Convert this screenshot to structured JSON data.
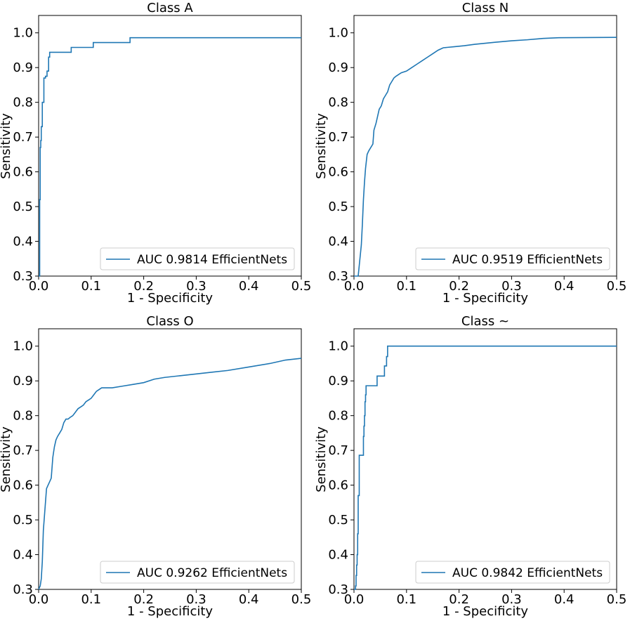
{
  "figure": {
    "line_color": "#1f77b4"
  },
  "chart_data": [
    {
      "type": "line",
      "title": "Class A",
      "xlabel": "1 - Specificity",
      "ylabel": "Sensitivity",
      "xlim": [
        0,
        0.5
      ],
      "ylim": [
        0.3,
        1.05
      ],
      "xticks": [
        0.0,
        0.1,
        0.2,
        0.3,
        0.4,
        0.5
      ],
      "xtick_labels": [
        "0.0",
        "0.1",
        "0.2",
        "0.3",
        "0.4",
        "0.5"
      ],
      "yticks": [
        0.3,
        0.4,
        0.5,
        0.6,
        0.7,
        0.8,
        0.9,
        1.0
      ],
      "ytick_labels": [
        "0.3",
        "0.4",
        "0.5",
        "0.6",
        "0.7",
        "0.8",
        "0.9",
        "1.0"
      ],
      "legend": "AUC 0.9814 EfficientNets",
      "legend_position": "lower right",
      "series": [
        {
          "name": "AUC 0.9814 EfficientNets",
          "x": [
            0.0,
            0.002,
            0.002,
            0.003,
            0.003,
            0.004,
            0.004,
            0.005,
            0.005,
            0.007,
            0.007,
            0.01,
            0.01,
            0.013,
            0.013,
            0.016,
            0.016,
            0.019,
            0.019,
            0.021,
            0.021,
            0.062,
            0.062,
            0.104,
            0.104,
            0.174,
            0.174,
            0.5
          ],
          "y": [
            0.3,
            0.3,
            0.52,
            0.52,
            0.67,
            0.67,
            0.69,
            0.69,
            0.73,
            0.73,
            0.8,
            0.8,
            0.87,
            0.87,
            0.875,
            0.875,
            0.89,
            0.89,
            0.93,
            0.93,
            0.944,
            0.944,
            0.958,
            0.958,
            0.972,
            0.972,
            0.986,
            0.986
          ]
        }
      ]
    },
    {
      "type": "line",
      "title": "Class N",
      "xlabel": "1 - Specificity",
      "ylabel": "Sensitivity",
      "xlim": [
        0,
        0.5
      ],
      "ylim": [
        0.3,
        1.05
      ],
      "xticks": [
        0.0,
        0.1,
        0.2,
        0.3,
        0.4,
        0.5
      ],
      "xtick_labels": [
        "0.0",
        "0.1",
        "0.2",
        "0.3",
        "0.4",
        "0.5"
      ],
      "yticks": [
        0.3,
        0.4,
        0.5,
        0.6,
        0.7,
        0.8,
        0.9,
        1.0
      ],
      "ytick_labels": [
        "0.3",
        "0.4",
        "0.5",
        "0.6",
        "0.7",
        "0.8",
        "0.9",
        "1.0"
      ],
      "legend": "AUC 0.9519 EfficientNets",
      "legend_position": "lower right",
      "series": [
        {
          "name": "AUC 0.9519 EfficientNets",
          "x": [
            0.0,
            0.008,
            0.012,
            0.014,
            0.016,
            0.018,
            0.02,
            0.022,
            0.025,
            0.028,
            0.032,
            0.036,
            0.038,
            0.042,
            0.045,
            0.048,
            0.052,
            0.056,
            0.06,
            0.064,
            0.068,
            0.072,
            0.076,
            0.08,
            0.085,
            0.09,
            0.1,
            0.11,
            0.12,
            0.13,
            0.14,
            0.15,
            0.16,
            0.17,
            0.19,
            0.21,
            0.23,
            0.25,
            0.27,
            0.3,
            0.33,
            0.36,
            0.39,
            0.5
          ],
          "y": [
            0.3,
            0.3,
            0.36,
            0.39,
            0.45,
            0.52,
            0.57,
            0.61,
            0.65,
            0.66,
            0.67,
            0.68,
            0.72,
            0.74,
            0.76,
            0.78,
            0.79,
            0.81,
            0.82,
            0.83,
            0.85,
            0.86,
            0.87,
            0.875,
            0.88,
            0.885,
            0.89,
            0.9,
            0.91,
            0.92,
            0.93,
            0.94,
            0.95,
            0.957,
            0.96,
            0.963,
            0.967,
            0.97,
            0.973,
            0.977,
            0.98,
            0.984,
            0.986,
            0.987
          ]
        }
      ]
    },
    {
      "type": "line",
      "title": "Class O",
      "xlabel": "1 - Specificity",
      "ylabel": "Sensitivity",
      "xlim": [
        0,
        0.5
      ],
      "ylim": [
        0.3,
        1.05
      ],
      "xticks": [
        0.0,
        0.1,
        0.2,
        0.3,
        0.4,
        0.5
      ],
      "xtick_labels": [
        "0.0",
        "0.1",
        "0.2",
        "0.3",
        "0.4",
        "0.5"
      ],
      "yticks": [
        0.3,
        0.4,
        0.5,
        0.6,
        0.7,
        0.8,
        0.9,
        1.0
      ],
      "ytick_labels": [
        "0.3",
        "0.4",
        "0.5",
        "0.6",
        "0.7",
        "0.8",
        "0.9",
        "1.0"
      ],
      "legend": "AUC 0.9262 EfficientNets",
      "legend_position": "lower right",
      "series": [
        {
          "name": "AUC 0.9262 EfficientNets",
          "x": [
            0.0,
            0.003,
            0.005,
            0.007,
            0.009,
            0.011,
            0.013,
            0.015,
            0.018,
            0.021,
            0.024,
            0.027,
            0.03,
            0.033,
            0.036,
            0.04,
            0.044,
            0.048,
            0.052,
            0.056,
            0.06,
            0.065,
            0.07,
            0.075,
            0.08,
            0.085,
            0.09,
            0.095,
            0.1,
            0.105,
            0.11,
            0.115,
            0.12,
            0.14,
            0.16,
            0.18,
            0.2,
            0.22,
            0.24,
            0.27,
            0.3,
            0.33,
            0.36,
            0.4,
            0.44,
            0.47,
            0.5
          ],
          "y": [
            0.3,
            0.31,
            0.33,
            0.38,
            0.47,
            0.51,
            0.55,
            0.59,
            0.6,
            0.61,
            0.62,
            0.68,
            0.71,
            0.73,
            0.74,
            0.75,
            0.76,
            0.78,
            0.79,
            0.79,
            0.795,
            0.8,
            0.81,
            0.82,
            0.825,
            0.83,
            0.84,
            0.845,
            0.85,
            0.86,
            0.87,
            0.875,
            0.88,
            0.88,
            0.885,
            0.89,
            0.895,
            0.905,
            0.91,
            0.915,
            0.92,
            0.925,
            0.93,
            0.94,
            0.95,
            0.96,
            0.965
          ]
        }
      ]
    },
    {
      "type": "line",
      "title": "Class ~",
      "xlabel": "1 - Specificity",
      "ylabel": "Sensitivity",
      "xlim": [
        0,
        0.5
      ],
      "ylim": [
        0.3,
        1.05
      ],
      "xticks": [
        0.0,
        0.1,
        0.2,
        0.3,
        0.4,
        0.5
      ],
      "xtick_labels": [
        "0.0",
        "0.1",
        "0.2",
        "0.3",
        "0.4",
        "0.5"
      ],
      "yticks": [
        0.3,
        0.4,
        0.5,
        0.6,
        0.7,
        0.8,
        0.9,
        1.0
      ],
      "ytick_labels": [
        "0.3",
        "0.4",
        "0.5",
        "0.6",
        "0.7",
        "0.8",
        "0.9",
        "1.0"
      ],
      "legend": "AUC 0.9842 EfficientNets",
      "legend_position": "lower right",
      "series": [
        {
          "name": "AUC 0.9842 EfficientNets",
          "x": [
            0.0,
            0.003,
            0.003,
            0.004,
            0.004,
            0.005,
            0.005,
            0.006,
            0.006,
            0.007,
            0.007,
            0.008,
            0.008,
            0.01,
            0.01,
            0.014,
            0.014,
            0.018,
            0.018,
            0.019,
            0.019,
            0.02,
            0.02,
            0.021,
            0.021,
            0.022,
            0.022,
            0.023,
            0.023,
            0.025,
            0.025,
            0.029,
            0.029,
            0.034,
            0.034,
            0.044,
            0.044,
            0.058,
            0.058,
            0.062,
            0.062,
            0.064,
            0.064,
            0.5
          ],
          "y": [
            0.3,
            0.3,
            0.31,
            0.31,
            0.34,
            0.34,
            0.37,
            0.37,
            0.4,
            0.4,
            0.46,
            0.46,
            0.57,
            0.57,
            0.686,
            0.686,
            0.686,
            0.686,
            0.74,
            0.74,
            0.77,
            0.77,
            0.8,
            0.8,
            0.84,
            0.84,
            0.86,
            0.86,
            0.886,
            0.886,
            0.886,
            0.886,
            0.886,
            0.886,
            0.886,
            0.886,
            0.914,
            0.914,
            0.943,
            0.943,
            0.97,
            0.97,
            1.0,
            1.0
          ]
        }
      ]
    }
  ]
}
